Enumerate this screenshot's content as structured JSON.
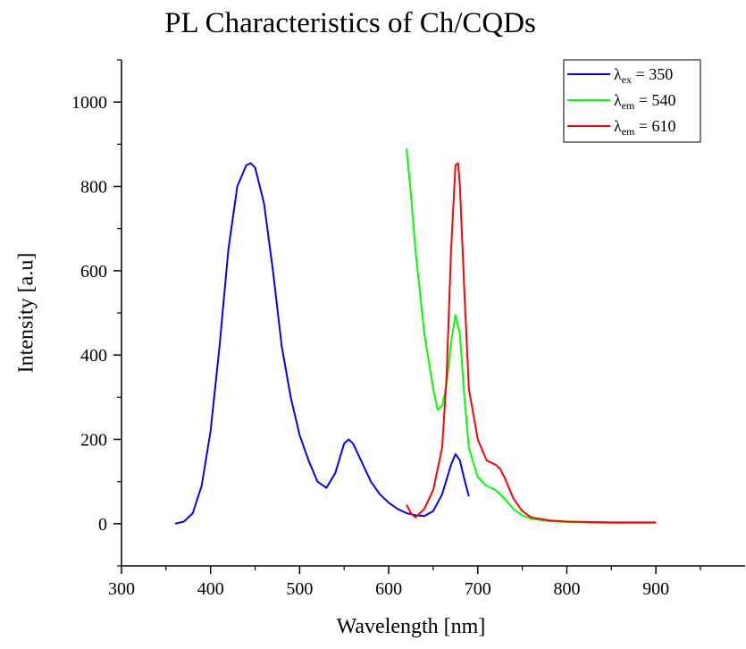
{
  "chart_data": {
    "type": "line",
    "title": "PL Characteristics of Ch/CQDs",
    "xlabel": "Wavelength [nm]",
    "ylabel": "Intensity [a.u]",
    "xlim": [
      300,
      950
    ],
    "ylim": [
      -100,
      1100
    ],
    "xticks": [
      "300",
      "400",
      "500",
      "600",
      "700",
      "800",
      "900"
    ],
    "yticks": [
      "0",
      "200",
      "400",
      "600",
      "800",
      "1000"
    ],
    "grid": false,
    "legend_position": "top-right",
    "series": [
      {
        "name": "λex = 350",
        "legend_symbol": "λ",
        "legend_sub": "ex",
        "legend_value": " = 350",
        "color": "#0000ff",
        "x": [
          360,
          370,
          380,
          390,
          400,
          410,
          420,
          430,
          440,
          445,
          450,
          460,
          470,
          480,
          490,
          500,
          510,
          520,
          530,
          540,
          550,
          555,
          560,
          570,
          580,
          590,
          600,
          610,
          620,
          630,
          640,
          650,
          660,
          670,
          675,
          680,
          685,
          690
        ],
        "y": [
          0,
          5,
          25,
          90,
          220,
          420,
          650,
          800,
          850,
          855,
          845,
          760,
          600,
          420,
          300,
          210,
          150,
          100,
          85,
          120,
          190,
          200,
          190,
          145,
          100,
          70,
          50,
          35,
          25,
          20,
          18,
          30,
          70,
          140,
          165,
          150,
          105,
          65
        ]
      },
      {
        "name": "λem = 540",
        "legend_symbol": "λ",
        "legend_sub": "em",
        "legend_value": " = 540",
        "color": "#00ff00",
        "x": [
          620,
          625,
          630,
          640,
          650,
          655,
          660,
          665,
          670,
          675,
          680,
          685,
          690,
          700,
          710,
          720,
          730,
          740,
          750,
          760,
          780,
          800,
          850,
          900
        ],
        "y": [
          890,
          780,
          650,
          450,
          320,
          270,
          280,
          330,
          430,
          495,
          450,
          300,
          180,
          110,
          90,
          80,
          60,
          35,
          20,
          12,
          6,
          4,
          2,
          2
        ]
      },
      {
        "name": "λem = 610",
        "legend_symbol": "λ",
        "legend_sub": "em",
        "legend_value": " = 610",
        "color": "#ff0000",
        "x": [
          620,
          625,
          630,
          640,
          650,
          660,
          665,
          670,
          675,
          678,
          680,
          685,
          690,
          700,
          710,
          720,
          725,
          730,
          740,
          750,
          760,
          780,
          800,
          850,
          900
        ],
        "y": [
          45,
          25,
          15,
          35,
          80,
          180,
          350,
          650,
          850,
          855,
          800,
          550,
          320,
          200,
          150,
          140,
          130,
          110,
          60,
          30,
          15,
          8,
          5,
          3,
          3
        ]
      }
    ]
  }
}
